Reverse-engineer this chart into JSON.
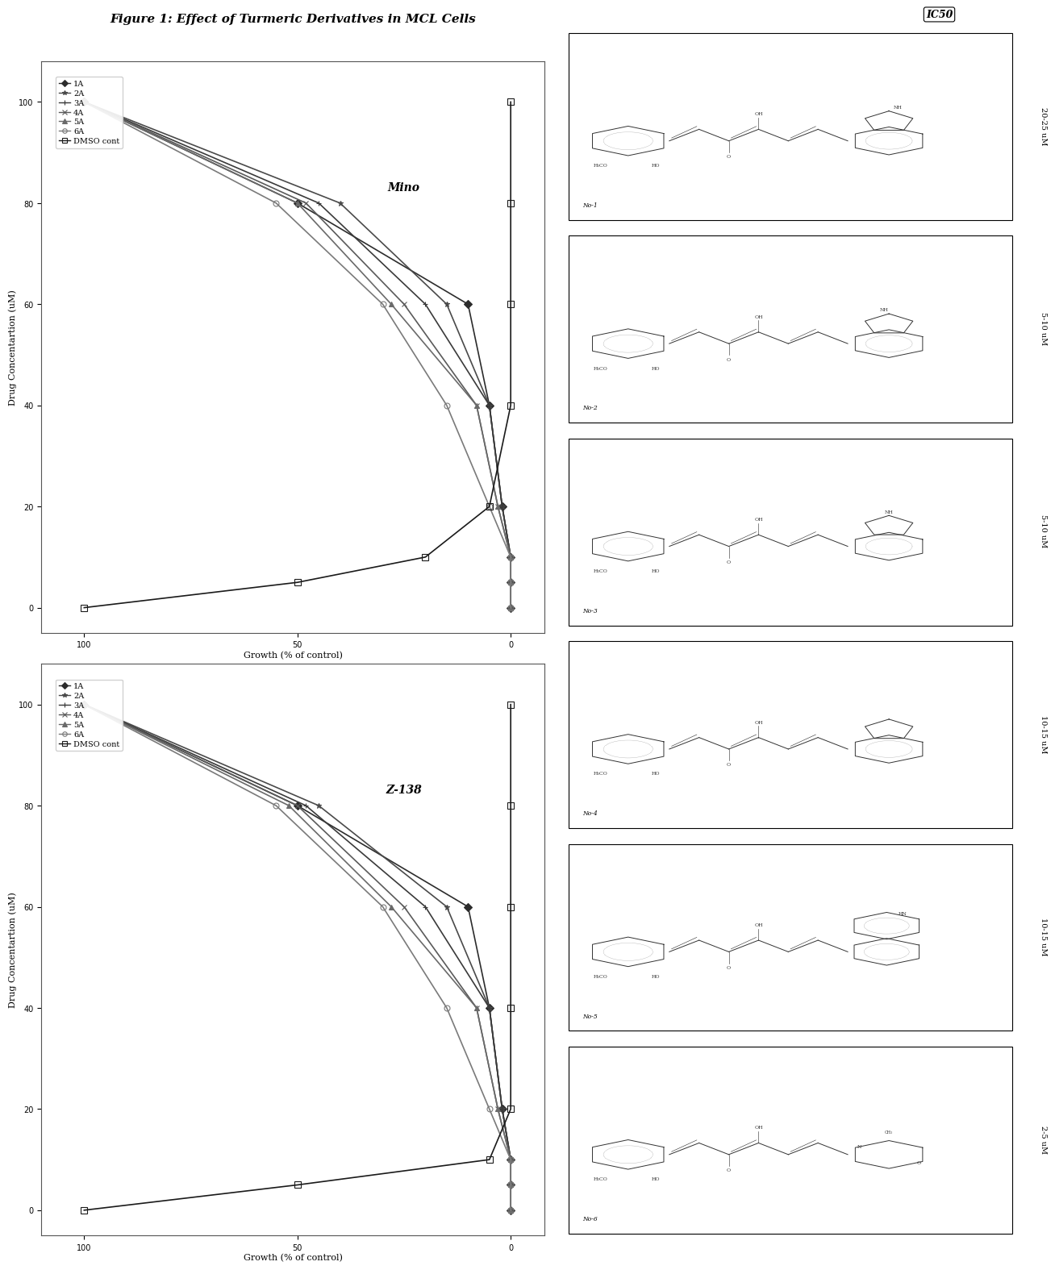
{
  "title": "Figure 1: Effect of Turmeric Derivatives in MCL Cells",
  "graph1_label": "Mino",
  "graph2_label": "Z-138",
  "xlabel": "Drug Concentartion (uM)",
  "ylabel": "Growth (% of control)",
  "x_values": [
    0,
    5,
    10,
    20,
    40,
    60,
    80,
    100
  ],
  "series_labels": [
    "1A",
    "2A",
    "3A",
    "4A",
    "5A",
    "6A",
    "DMSO cont"
  ],
  "mino_data": {
    "1A": [
      0,
      0,
      0,
      2,
      5,
      10,
      50,
      100
    ],
    "2A": [
      0,
      0,
      0,
      2,
      5,
      15,
      40,
      100
    ],
    "3A": [
      0,
      0,
      0,
      2,
      5,
      20,
      45,
      100
    ],
    "4A": [
      0,
      0,
      0,
      3,
      8,
      25,
      48,
      100
    ],
    "5A": [
      0,
      0,
      0,
      3,
      8,
      28,
      50,
      100
    ],
    "6A": [
      0,
      0,
      0,
      5,
      15,
      30,
      55,
      100
    ],
    "DMSO cont": [
      100,
      50,
      20,
      5,
      0,
      0,
      0,
      0
    ]
  },
  "z138_data": {
    "1A": [
      0,
      0,
      0,
      2,
      5,
      10,
      50,
      100
    ],
    "2A": [
      0,
      0,
      0,
      2,
      5,
      15,
      45,
      100
    ],
    "3A": [
      0,
      0,
      0,
      2,
      5,
      20,
      48,
      100
    ],
    "4A": [
      0,
      0,
      0,
      3,
      8,
      25,
      50,
      100
    ],
    "5A": [
      0,
      0,
      0,
      3,
      8,
      28,
      52,
      100
    ],
    "6A": [
      0,
      0,
      0,
      5,
      15,
      30,
      55,
      100
    ],
    "DMSO cont": [
      100,
      50,
      5,
      0,
      0,
      0,
      0,
      0
    ]
  },
  "ic50_values": [
    "20-25 uM",
    "5-10 uM",
    "5-10 uM",
    "10-15 uM",
    "10-15 uM",
    "2-5 uM"
  ],
  "compound_labels": [
    "No-1",
    "No-2",
    "No-3",
    "No-4",
    "No-5",
    "No-6"
  ],
  "background_color": "#ffffff",
  "line_width": 1.2,
  "marker_size": 5,
  "font_size_title": 11,
  "font_size_label": 8,
  "font_size_tick": 7,
  "font_size_legend": 7
}
